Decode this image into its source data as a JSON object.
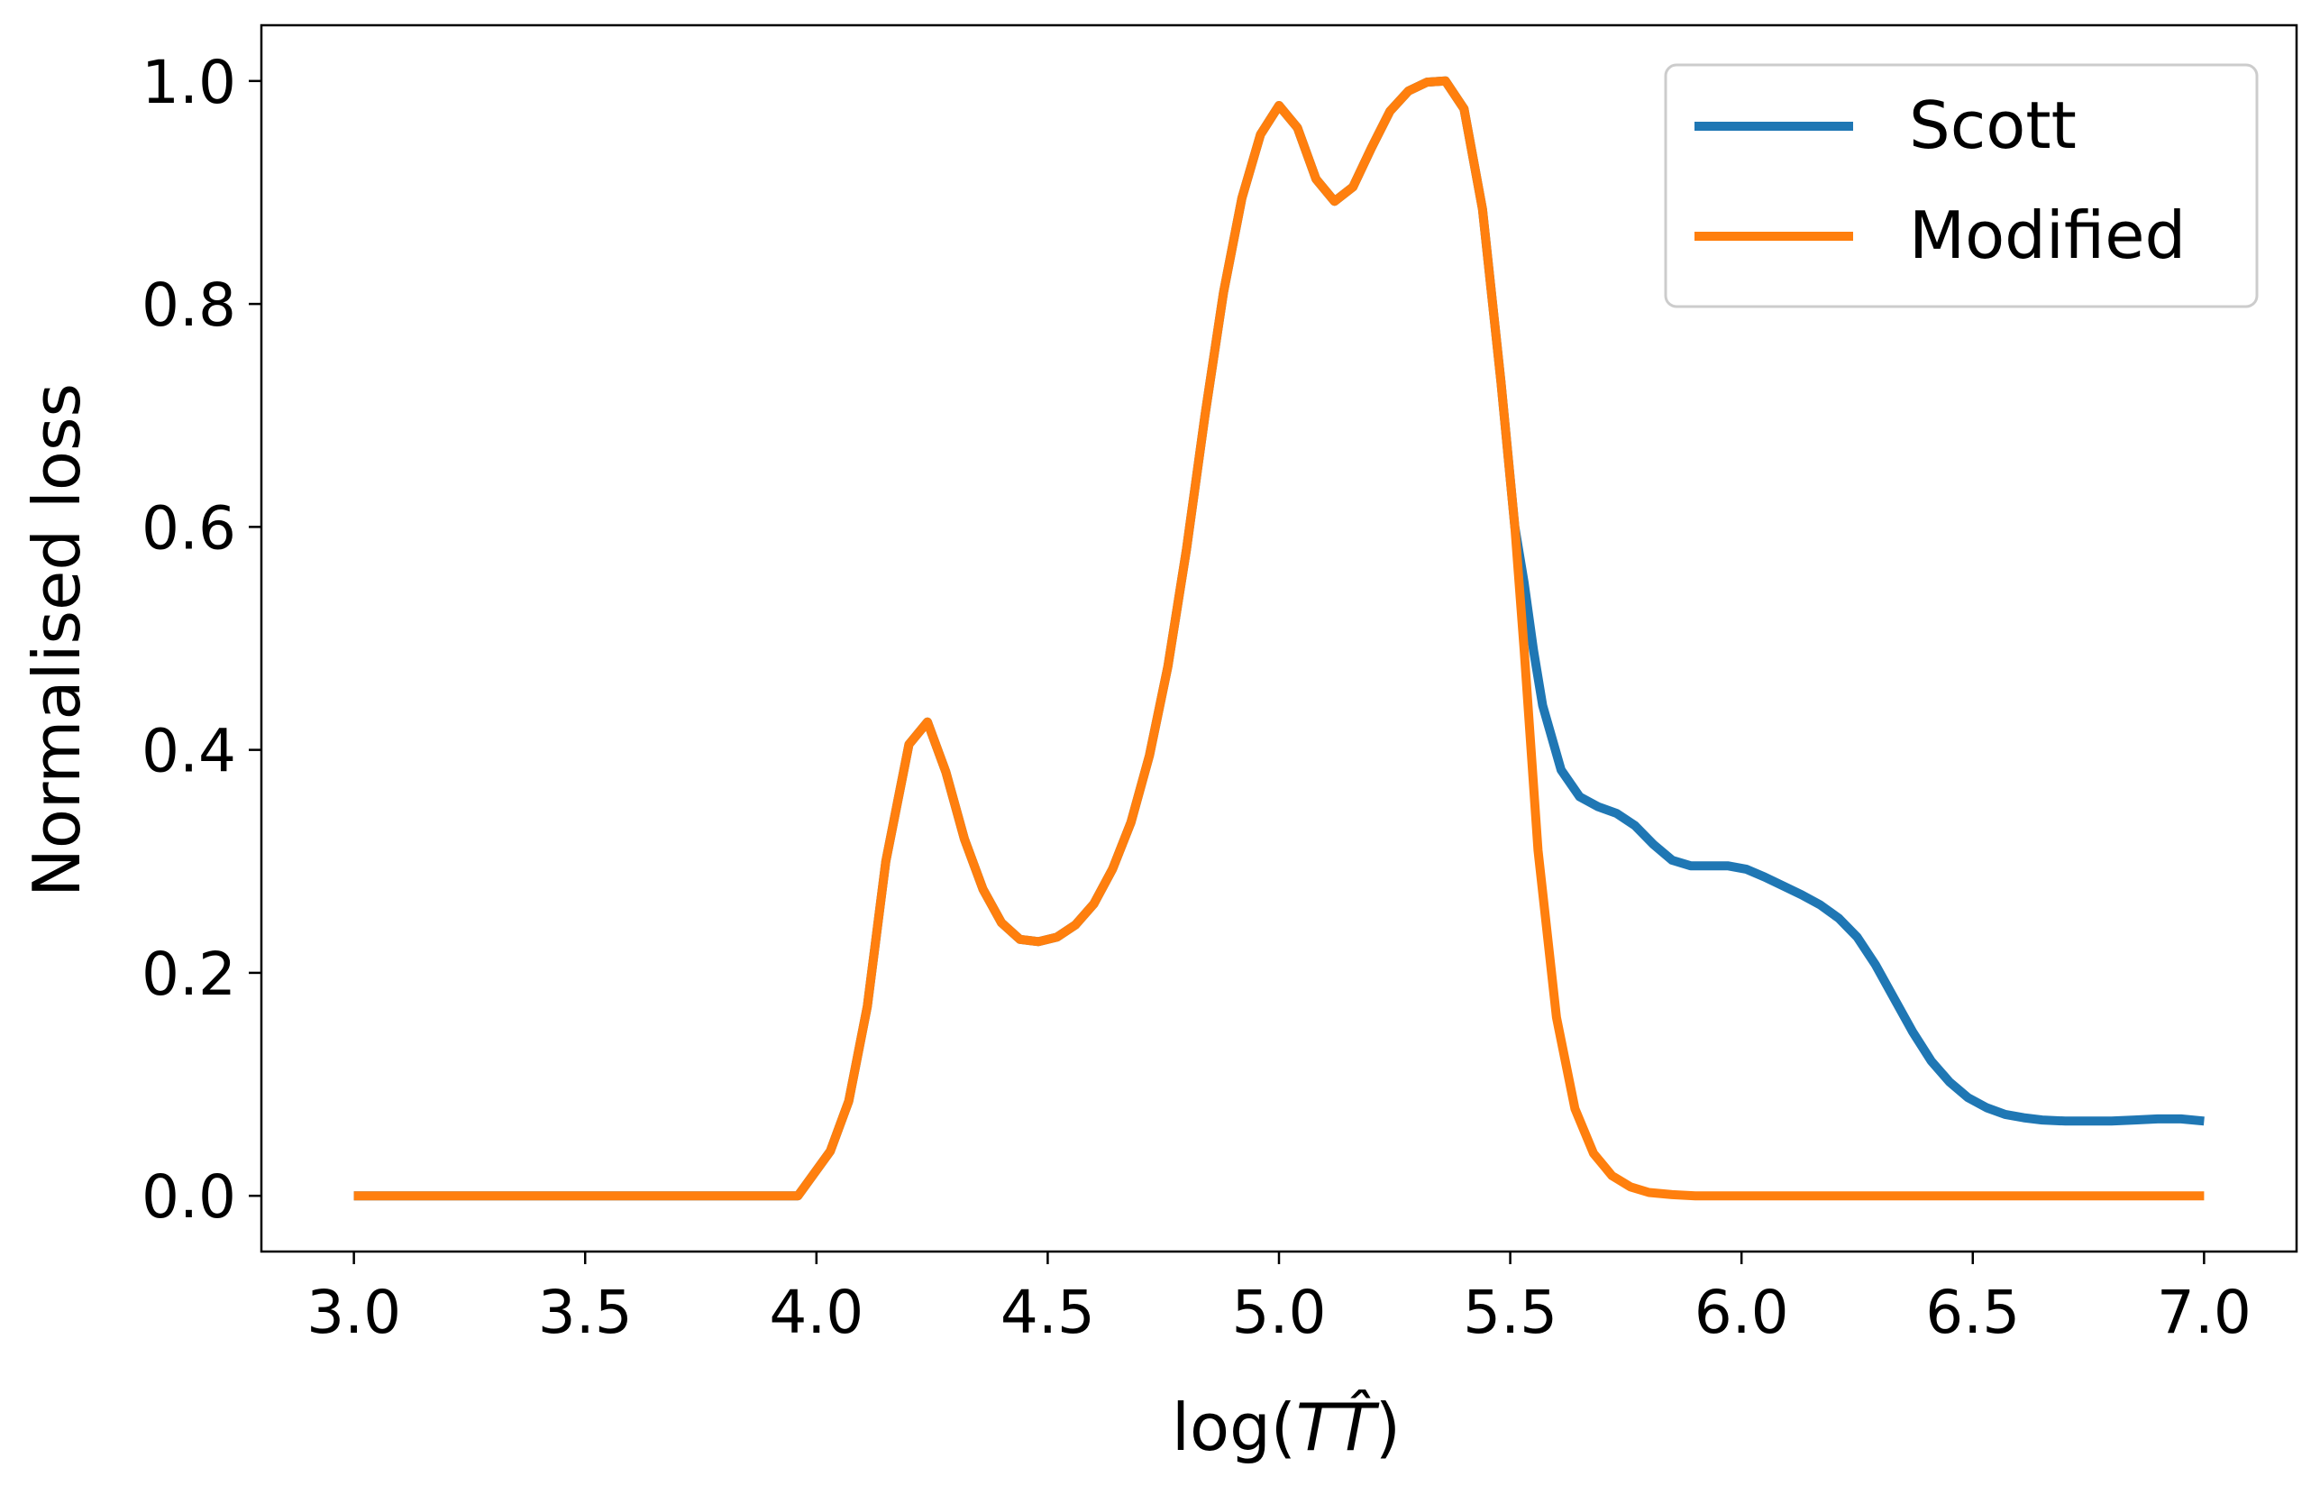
{
  "chart_data": {
    "type": "line",
    "xlabel": "log(TT̂)",
    "xlabel_parts": {
      "prefix": "log(",
      "var": "T",
      "var_hat": "T̂",
      "suffix": ")"
    },
    "ylabel": "Normalised loss",
    "xlim": [
      2.8,
      7.2
    ],
    "ylim": [
      -0.05,
      1.05
    ],
    "x_ticks": [
      3.0,
      3.5,
      4.0,
      4.5,
      5.0,
      5.5,
      6.0,
      6.5,
      7.0
    ],
    "x_tick_labels": [
      "3.0",
      "3.5",
      "4.0",
      "4.5",
      "5.0",
      "5.5",
      "6.0",
      "6.5",
      "7.0"
    ],
    "y_ticks": [
      0.0,
      0.2,
      0.4,
      0.6,
      0.8,
      1.0
    ],
    "y_tick_labels": [
      "0.0",
      "0.2",
      "0.4",
      "0.6",
      "0.8",
      "1.0"
    ],
    "grid": false,
    "legend_position": "top-right",
    "series": [
      {
        "name": "Scott",
        "color": "#1f77b4",
        "points": [
          [
            3.0,
            0.0
          ],
          [
            3.96,
            0.0
          ],
          [
            4.03,
            0.04
          ],
          [
            4.07,
            0.085
          ],
          [
            4.11,
            0.17
          ],
          [
            4.15,
            0.3
          ],
          [
            4.2,
            0.405
          ],
          [
            4.24,
            0.425
          ],
          [
            4.28,
            0.38
          ],
          [
            4.32,
            0.32
          ],
          [
            4.36,
            0.275
          ],
          [
            4.4,
            0.245
          ],
          [
            4.44,
            0.23
          ],
          [
            4.48,
            0.228
          ],
          [
            4.52,
            0.232
          ],
          [
            4.56,
            0.243
          ],
          [
            4.6,
            0.262
          ],
          [
            4.64,
            0.293
          ],
          [
            4.68,
            0.335
          ],
          [
            4.72,
            0.395
          ],
          [
            4.76,
            0.475
          ],
          [
            4.8,
            0.58
          ],
          [
            4.84,
            0.7
          ],
          [
            4.88,
            0.81
          ],
          [
            4.92,
            0.895
          ],
          [
            4.96,
            0.952
          ],
          [
            5.0,
            0.978
          ],
          [
            5.04,
            0.958
          ],
          [
            5.08,
            0.912
          ],
          [
            5.12,
            0.892
          ],
          [
            5.16,
            0.905
          ],
          [
            5.2,
            0.94
          ],
          [
            5.24,
            0.973
          ],
          [
            5.28,
            0.991
          ],
          [
            5.32,
            0.999
          ],
          [
            5.36,
            1.0
          ],
          [
            5.4,
            0.975
          ],
          [
            5.44,
            0.885
          ],
          [
            5.48,
            0.73
          ],
          [
            5.51,
            0.6
          ],
          [
            5.53,
            0.55
          ],
          [
            5.55,
            0.49
          ],
          [
            5.57,
            0.44
          ],
          [
            5.61,
            0.382
          ],
          [
            5.65,
            0.358
          ],
          [
            5.69,
            0.349
          ],
          [
            5.73,
            0.343
          ],
          [
            5.77,
            0.332
          ],
          [
            5.81,
            0.315
          ],
          [
            5.85,
            0.301
          ],
          [
            5.89,
            0.296
          ],
          [
            5.93,
            0.296
          ],
          [
            5.97,
            0.296
          ],
          [
            6.01,
            0.293
          ],
          [
            6.05,
            0.286
          ],
          [
            6.09,
            0.278
          ],
          [
            6.13,
            0.27
          ],
          [
            6.17,
            0.261
          ],
          [
            6.21,
            0.249
          ],
          [
            6.25,
            0.232
          ],
          [
            6.29,
            0.207
          ],
          [
            6.33,
            0.177
          ],
          [
            6.37,
            0.147
          ],
          [
            6.41,
            0.121
          ],
          [
            6.45,
            0.102
          ],
          [
            6.49,
            0.088
          ],
          [
            6.53,
            0.079
          ],
          [
            6.57,
            0.073
          ],
          [
            6.61,
            0.07
          ],
          [
            6.65,
            0.068
          ],
          [
            6.7,
            0.067
          ],
          [
            6.75,
            0.067
          ],
          [
            6.8,
            0.067
          ],
          [
            6.85,
            0.068
          ],
          [
            6.9,
            0.069
          ],
          [
            6.95,
            0.069
          ],
          [
            7.0,
            0.067
          ]
        ]
      },
      {
        "name": "Modified",
        "color": "#ff7f0e",
        "points": [
          [
            3.0,
            0.0
          ],
          [
            3.96,
            0.0
          ],
          [
            4.03,
            0.04
          ],
          [
            4.07,
            0.085
          ],
          [
            4.11,
            0.17
          ],
          [
            4.15,
            0.3
          ],
          [
            4.2,
            0.405
          ],
          [
            4.24,
            0.425
          ],
          [
            4.28,
            0.38
          ],
          [
            4.32,
            0.32
          ],
          [
            4.36,
            0.275
          ],
          [
            4.4,
            0.245
          ],
          [
            4.44,
            0.23
          ],
          [
            4.48,
            0.228
          ],
          [
            4.52,
            0.232
          ],
          [
            4.56,
            0.243
          ],
          [
            4.6,
            0.262
          ],
          [
            4.64,
            0.293
          ],
          [
            4.68,
            0.335
          ],
          [
            4.72,
            0.395
          ],
          [
            4.76,
            0.475
          ],
          [
            4.8,
            0.58
          ],
          [
            4.84,
            0.7
          ],
          [
            4.88,
            0.81
          ],
          [
            4.92,
            0.895
          ],
          [
            4.96,
            0.952
          ],
          [
            5.0,
            0.978
          ],
          [
            5.04,
            0.958
          ],
          [
            5.08,
            0.912
          ],
          [
            5.12,
            0.892
          ],
          [
            5.16,
            0.905
          ],
          [
            5.2,
            0.94
          ],
          [
            5.24,
            0.973
          ],
          [
            5.28,
            0.991
          ],
          [
            5.32,
            0.999
          ],
          [
            5.36,
            1.0
          ],
          [
            5.4,
            0.975
          ],
          [
            5.44,
            0.885
          ],
          [
            5.48,
            0.73
          ],
          [
            5.51,
            0.6
          ],
          [
            5.53,
            0.49
          ],
          [
            5.56,
            0.31
          ],
          [
            5.6,
            0.16
          ],
          [
            5.64,
            0.078
          ],
          [
            5.68,
            0.038
          ],
          [
            5.72,
            0.018
          ],
          [
            5.76,
            0.008
          ],
          [
            5.8,
            0.003
          ],
          [
            5.85,
            0.001
          ],
          [
            5.9,
            0.0
          ],
          [
            7.0,
            0.0
          ]
        ]
      }
    ]
  }
}
